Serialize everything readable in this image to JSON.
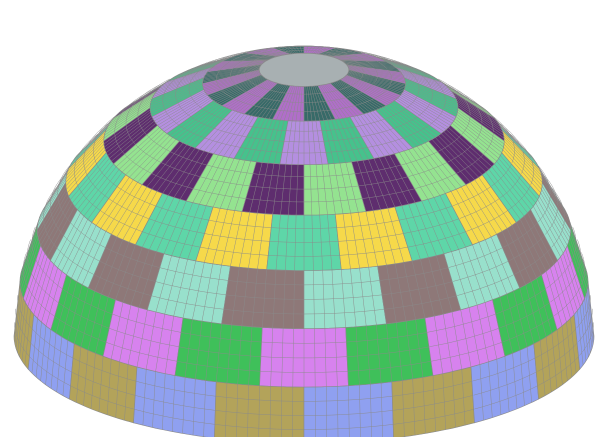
{
  "figure": {
    "subject": "hemispherical-dome-mesh",
    "background": "#ffffff",
    "mesh_line_color": "#8a8a8a",
    "element_lines_per_patch_v": 4,
    "element_lines_per_patch_u": 8,
    "bands": [
      {
        "name": "band-base",
        "patches": 20,
        "colors": [
          "#8fa0f0",
          "#b3a35a"
        ]
      },
      {
        "name": "band-2",
        "patches": 20,
        "colors": [
          "#3fc05a",
          "#d782ee"
        ]
      },
      {
        "name": "band-3",
        "patches": 20,
        "colors": [
          "#98e0cc",
          "#8e7878"
        ]
      },
      {
        "name": "band-4",
        "patches": 20,
        "colors": [
          "#f6d94a",
          "#5ed6a8"
        ]
      },
      {
        "name": "band-5",
        "patches": 20,
        "colors": [
          "#94e390",
          "#5e2d6e"
        ]
      },
      {
        "name": "band-6",
        "patches": 20,
        "colors": [
          "#46c28c",
          "#b48fe0"
        ]
      },
      {
        "name": "band-crown",
        "patches": 20,
        "colors": [
          "#376a68",
          "#b06ec9"
        ]
      }
    ]
  }
}
